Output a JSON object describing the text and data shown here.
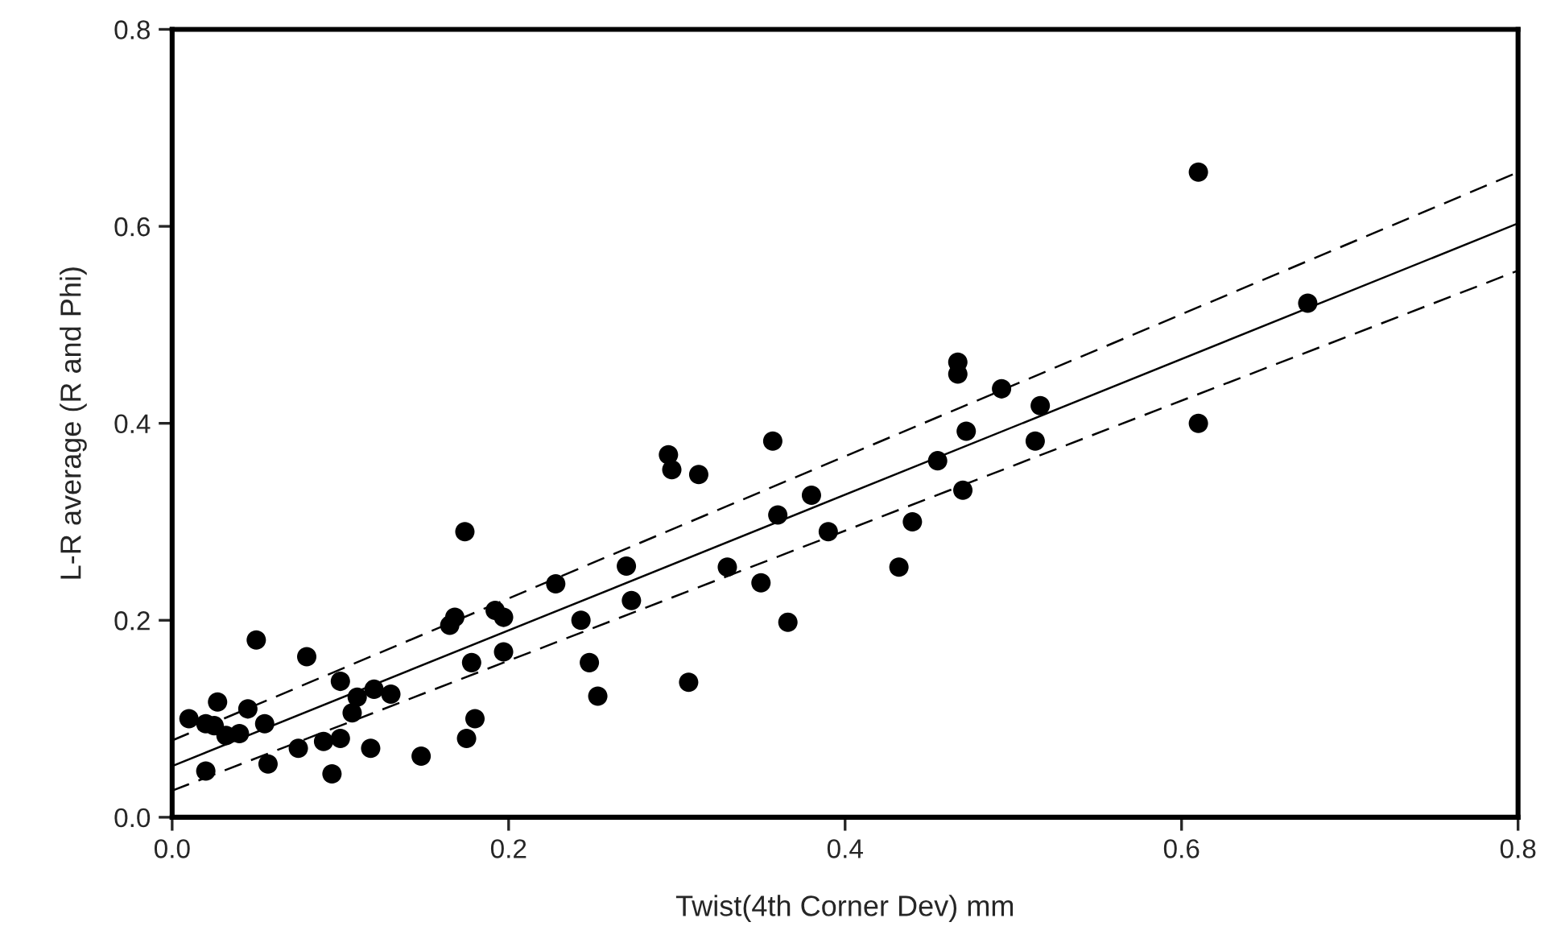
{
  "chart_data": {
    "type": "scatter",
    "xlabel": "Twist(4th Corner Dev) mm",
    "ylabel": "L-R average (R and Phi)",
    "xlim": [
      0,
      0.8
    ],
    "ylim": [
      0,
      0.8
    ],
    "xticks": [
      {
        "value": 0,
        "label": "0.0"
      },
      {
        "value": 0.2,
        "label": "0.2"
      },
      {
        "value": 0.4,
        "label": "0.4"
      },
      {
        "value": 0.6,
        "label": "0.6"
      },
      {
        "value": 0.8,
        "label": "0.8"
      }
    ],
    "yticks": [
      {
        "value": 0,
        "label": "0.0"
      },
      {
        "value": 0.2,
        "label": "0.2"
      },
      {
        "value": 0.4,
        "label": "0.4"
      },
      {
        "value": 0.6,
        "label": "0.6"
      },
      {
        "value": 0.8,
        "label": "0.8"
      }
    ],
    "grid": false,
    "series": [
      {
        "color": "#000000",
        "marker": "circle",
        "x": [
          0.01,
          0.02,
          0.02,
          0.025,
          0.027,
          0.032,
          0.04,
          0.045,
          0.05,
          0.055,
          0.057,
          0.075,
          0.08,
          0.09,
          0.095,
          0.1,
          0.1,
          0.107,
          0.11,
          0.118,
          0.12,
          0.13,
          0.148,
          0.165,
          0.168,
          0.174,
          0.175,
          0.178,
          0.18,
          0.192,
          0.197,
          0.197,
          0.228,
          0.243,
          0.248,
          0.253,
          0.27,
          0.273,
          0.295,
          0.297,
          0.307,
          0.313,
          0.33,
          0.35,
          0.357,
          0.36,
          0.366,
          0.38,
          0.39,
          0.432,
          0.44,
          0.455,
          0.467,
          0.467,
          0.47,
          0.472,
          0.493,
          0.513,
          0.516,
          0.61,
          0.61,
          0.675
        ],
        "values": [
          0.1,
          0.095,
          0.047,
          0.093,
          0.117,
          0.083,
          0.085,
          0.11,
          0.18,
          0.095,
          0.054,
          0.07,
          0.163,
          0.077,
          0.044,
          0.138,
          0.08,
          0.106,
          0.122,
          0.07,
          0.13,
          0.125,
          0.062,
          0.195,
          0.203,
          0.29,
          0.08,
          0.157,
          0.1,
          0.21,
          0.203,
          0.168,
          0.237,
          0.2,
          0.157,
          0.123,
          0.255,
          0.22,
          0.368,
          0.353,
          0.137,
          0.348,
          0.254,
          0.238,
          0.382,
          0.307,
          0.198,
          0.327,
          0.29,
          0.254,
          0.3,
          0.362,
          0.462,
          0.45,
          0.332,
          0.392,
          0.435,
          0.382,
          0.418,
          0.655,
          0.4,
          0.522
        ]
      },
      {
        "type": "line",
        "color": "#000000",
        "line_style": "solid",
        "marker": "none",
        "x": [
          0,
          0.8
        ],
        "values": [
          0.052,
          0.603
        ]
      },
      {
        "type": "line",
        "color": "#000000",
        "line_style": "dashed",
        "marker": "none",
        "x": [
          0,
          0.8
        ],
        "values": [
          0.078,
          0.655
        ]
      },
      {
        "type": "line",
        "color": "#000000",
        "line_style": "dashed",
        "marker": "none",
        "x": [
          0,
          0.8
        ],
        "values": [
          0.027,
          0.555
        ]
      }
    ]
  }
}
